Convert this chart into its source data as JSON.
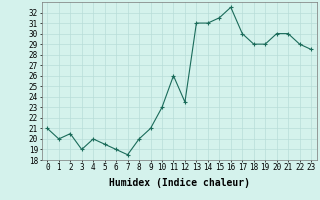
{
  "x": [
    0,
    1,
    2,
    3,
    4,
    5,
    6,
    7,
    8,
    9,
    10,
    11,
    12,
    13,
    14,
    15,
    16,
    17,
    18,
    19,
    20,
    21,
    22,
    23
  ],
  "y": [
    21,
    20,
    20.5,
    19,
    20,
    19.5,
    19,
    18.5,
    20,
    21,
    23,
    26,
    23.5,
    31,
    31,
    31.5,
    32.5,
    30,
    29,
    29,
    30,
    30,
    29,
    28.5
  ],
  "line_color": "#1a6b5a",
  "marker": "+",
  "marker_size": 3,
  "bg_color": "#d4f2ec",
  "grid_color": "#b8ddd8",
  "xlabel": "Humidex (Indice chaleur)",
  "ylim": [
    18,
    33
  ],
  "xlim": [
    -0.5,
    23.5
  ],
  "yticks": [
    18,
    19,
    20,
    21,
    22,
    23,
    24,
    25,
    26,
    27,
    28,
    29,
    30,
    31,
    32
  ],
  "xticks": [
    0,
    1,
    2,
    3,
    4,
    5,
    6,
    7,
    8,
    9,
    10,
    11,
    12,
    13,
    14,
    15,
    16,
    17,
    18,
    19,
    20,
    21,
    22,
    23
  ],
  "tick_fontsize": 5.5,
  "xlabel_fontsize": 7
}
